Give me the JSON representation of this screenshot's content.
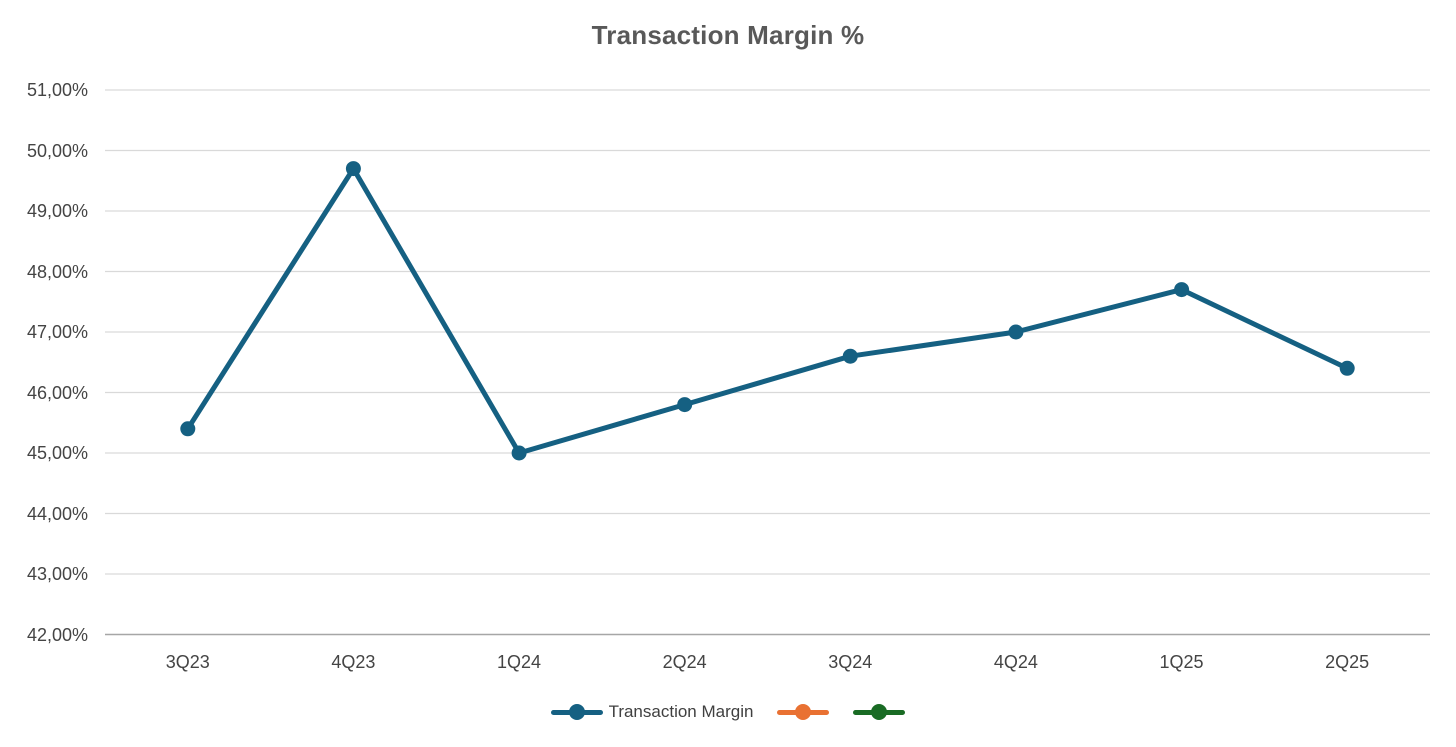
{
  "chart_data": {
    "type": "line",
    "title": "Transaction Margin %",
    "xlabel": "",
    "ylabel": "",
    "categories": [
      "3Q23",
      "4Q23",
      "1Q24",
      "2Q24",
      "3Q24",
      "4Q24",
      "1Q25",
      "2Q25"
    ],
    "series": [
      {
        "name": "Transaction Margin",
        "color": "#156082",
        "values": [
          45.4,
          49.7,
          45.0,
          45.8,
          46.6,
          47.0,
          47.7,
          46.4
        ]
      },
      {
        "name": "",
        "color": "#E97132",
        "values": []
      },
      {
        "name": "",
        "color": "#196B24",
        "values": []
      }
    ],
    "ylim": [
      42,
      51
    ],
    "y_tick_values": [
      51,
      50,
      49,
      48,
      47,
      46,
      45,
      44,
      43,
      42
    ],
    "y_tick_labels": [
      "51,00%",
      "50,00%",
      "49,00%",
      "48,00%",
      "47,00%",
      "46,00%",
      "45,00%",
      "44,00%",
      "43,00%",
      "42,00%"
    ],
    "number_format": "percent-comma-decimal",
    "grid": true,
    "legend_position": "bottom"
  },
  "style_colors": {
    "gridline": "#D9D9D9",
    "axis_line": "#A6A6A6",
    "title_text": "#595959",
    "tick_text": "#444444",
    "legend_text": "#404040"
  }
}
